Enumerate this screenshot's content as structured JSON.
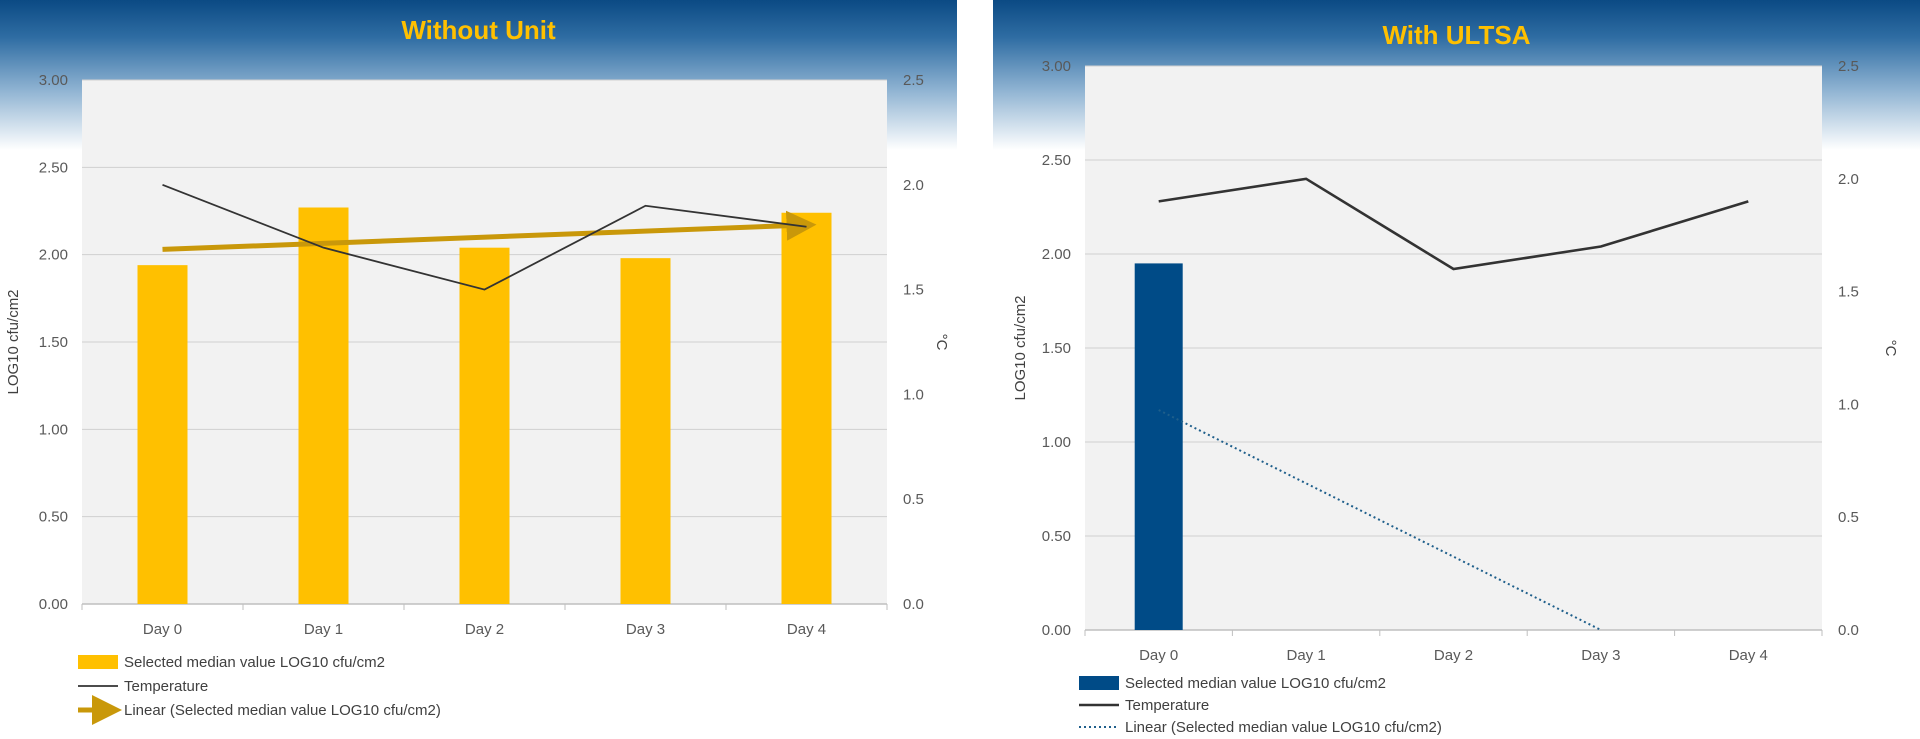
{
  "chart_data": [
    {
      "type": "bar",
      "title": "Without Unit",
      "categories": [
        "Day 0",
        "Day 1",
        "Day 2",
        "Day 3",
        "Day 4"
      ],
      "series": [
        {
          "name": "Selected median value LOG10 cfu/cm2",
          "axis": "left",
          "kind": "bar",
          "values": [
            1.94,
            2.27,
            2.04,
            1.98,
            2.24
          ],
          "color": "#ffc000"
        },
        {
          "name": "Temperature",
          "axis": "right",
          "kind": "line",
          "values": [
            2.0,
            1.7,
            1.5,
            1.9,
            1.8
          ],
          "color": "#333333"
        },
        {
          "name": "Linear (Selected median value LOG10 cfu/cm2)",
          "axis": "left",
          "kind": "trend-arrow",
          "values": [
            2.03,
            2.065,
            2.1,
            2.135,
            2.17
          ],
          "color": "#c9980a"
        }
      ],
      "ylabel": "LOG10 cfu/cm2",
      "ylim": [
        0,
        3
      ],
      "yticks": [
        "0.00",
        "0.50",
        "1.00",
        "1.50",
        "2.00",
        "2.50",
        "3.00"
      ],
      "y2label": "°C",
      "y2lim": [
        0,
        2.5
      ],
      "y2ticks": [
        "0.0",
        "0.5",
        "1.0",
        "1.5",
        "2.0",
        "2.5"
      ],
      "grid": true,
      "legend_position": "bottom-left"
    },
    {
      "type": "bar",
      "title": "With ULTSA",
      "categories": [
        "Day 0",
        "Day 1",
        "Day 2",
        "Day 3",
        "Day 4"
      ],
      "series": [
        {
          "name": "Selected median value LOG10 cfu/cm2",
          "axis": "left",
          "kind": "bar",
          "values": [
            1.95,
            null,
            null,
            null,
            null
          ],
          "color": "#004b87"
        },
        {
          "name": "Temperature",
          "axis": "right",
          "kind": "line",
          "values": [
            1.9,
            2.0,
            1.6,
            1.7,
            1.9
          ],
          "color": "#333333"
        },
        {
          "name": "Linear (Selected median value LOG10 cfu/cm2)",
          "axis": "left",
          "kind": "trend-dotted",
          "values": [
            1.17,
            0.78,
            0.39,
            0.0,
            null
          ],
          "color": "#1f5f8b"
        }
      ],
      "ylabel": "LOG10 cfu/cm2",
      "ylim": [
        0,
        3
      ],
      "yticks": [
        "0.00",
        "0.50",
        "1.00",
        "1.50",
        "2.00",
        "2.50",
        "3.00"
      ],
      "y2label": "°C",
      "y2lim": [
        0,
        2.5
      ],
      "y2ticks": [
        "0.0",
        "0.5",
        "1.0",
        "1.5",
        "2.0",
        "2.5"
      ],
      "grid": true,
      "legend_position": "bottom-left"
    }
  ]
}
